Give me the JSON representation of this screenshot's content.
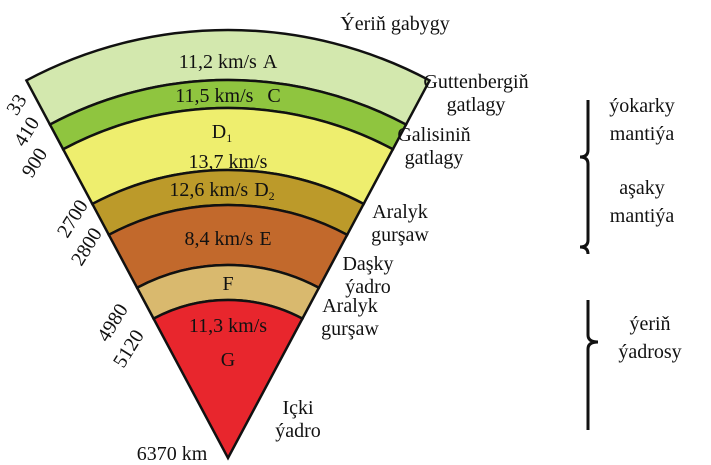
{
  "title": "Ýeriň gabygy",
  "layers": [
    {
      "speed": "11,2 km/s",
      "letter": "A"
    },
    {
      "speed": "11,5 km/s",
      "letter": "C"
    },
    {
      "letter": "D",
      "sub": "1",
      "speed": "13,7 km/s"
    },
    {
      "speed": "12,6 km/s",
      "letter": "D",
      "sub": "2"
    },
    {
      "speed": "8,4 km/s",
      "letter": "E"
    },
    {
      "letter": "F"
    },
    {
      "speed": "11,3 km/s",
      "letter": "G"
    }
  ],
  "boundaries": [
    [
      "Guttenbergiň",
      "gatlagy"
    ],
    [
      "Galisiniň",
      "gatlagy"
    ],
    [
      "Aralyk",
      "gurşaw"
    ],
    [
      "Daşky",
      "ýadro"
    ],
    [
      "Aralyk",
      "gurşaw"
    ],
    [
      "Içki",
      "ýadro"
    ]
  ],
  "depths": [
    "33",
    "410",
    "900",
    "2700",
    "2800",
    "4980",
    "5120",
    "6370 km"
  ],
  "zones": [
    [
      "ýokarky",
      "mantiýa"
    ],
    [
      "aşaky",
      "mantiýa"
    ],
    [
      "ýeriň",
      "ýadrosy"
    ]
  ]
}
